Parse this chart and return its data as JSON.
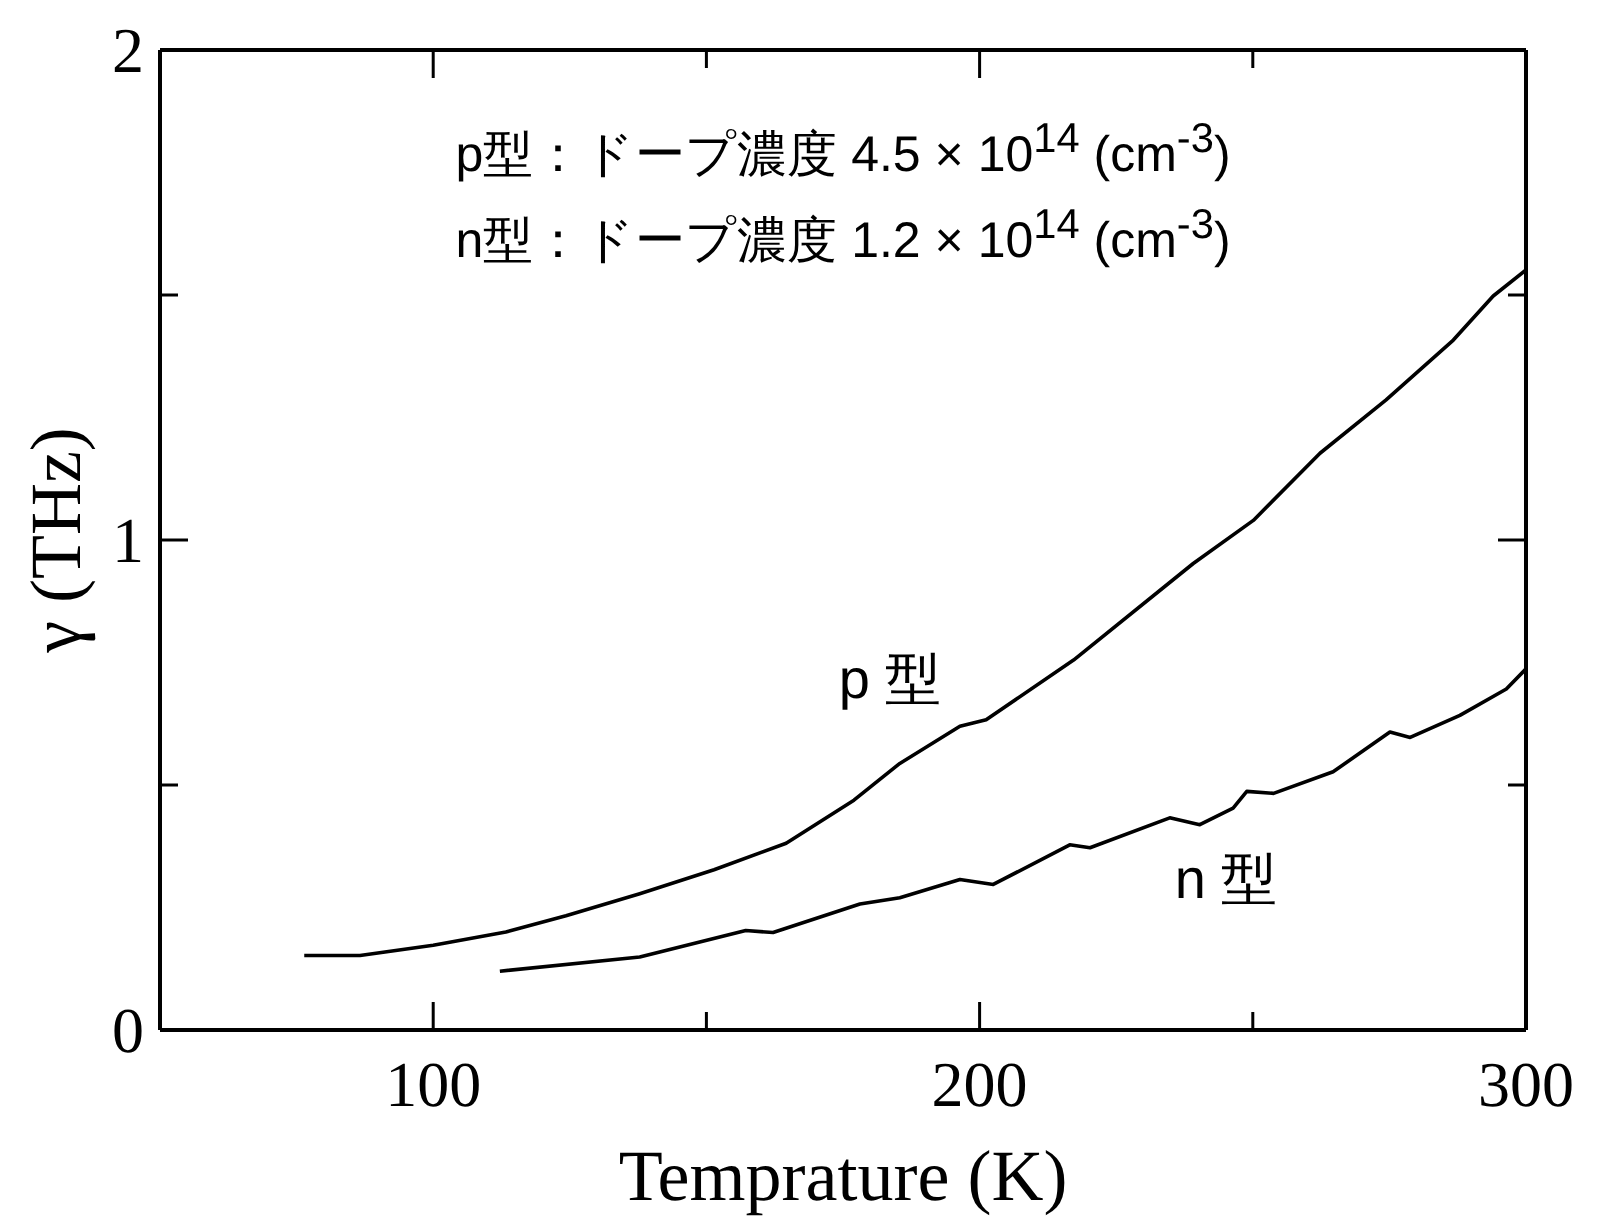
{
  "chart_data": {
    "type": "line",
    "xlabel": "Temprature (K)",
    "ylabel": "γ (THz)",
    "xlim": [
      50,
      300
    ],
    "xticks": [
      100,
      {
        "value": 150,
        "label": null
      },
      200,
      {
        "value": 250,
        "label": null
      },
      300
    ],
    "ylim": [
      0,
      2
    ],
    "yticks": [
      0,
      {
        "value": 0.5,
        "label": null
      },
      1,
      {
        "value": 1.5,
        "label": null
      },
      2
    ],
    "annotations": [
      "p型：ドープ濃度 4.5 × 10$^{14}$ (cm$^{-3}$)\nn型：ドープ濃度 1.2 × 10$^{14}$ (cm$^{-3}$)",
      "p 型",
      "n 型"
    ],
    "series": [
      {
        "color": "#000000",
        "x": [
          76.4,
          86.6,
          100,
          113.3,
          124.3,
          137.8,
          151.4,
          164.6,
          177,
          185.4,
          196.4,
          201.2,
          217.2,
          239.1,
          250.1,
          262.3,
          274.4,
          286.7,
          294,
          300
        ],
        "values": [
          0.152,
          0.152,
          0.173,
          0.2,
          0.233,
          0.278,
          0.327,
          0.381,
          0.469,
          0.544,
          0.62,
          0.633,
          0.755,
          0.952,
          1.04,
          1.177,
          1.286,
          1.408,
          1.498,
          1.551
        ]
      },
      {
        "color": "#000000",
        "x": [
          112.2,
          137.8,
          157.2,
          162.2,
          178.1,
          185.4,
          196.4,
          202.5,
          216.5,
          220.2,
          234.8,
          240.3,
          246.4,
          248.9,
          253.8,
          264.7,
          275.1,
          278.8,
          287.9,
          296.4,
          300
        ],
        "values": [
          0.12,
          0.149,
          0.203,
          0.199,
          0.257,
          0.27,
          0.307,
          0.297,
          0.378,
          0.372,
          0.433,
          0.419,
          0.453,
          0.487,
          0.483,
          0.527,
          0.608,
          0.597,
          0.642,
          0.696,
          0.737
        ]
      }
    ]
  }
}
